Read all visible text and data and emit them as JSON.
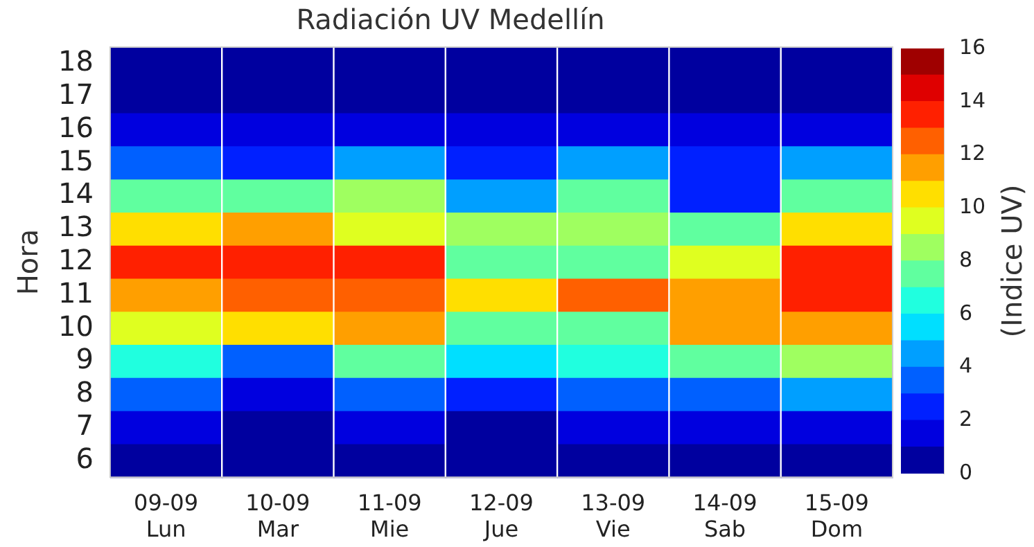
{
  "chart_data": {
    "type": "heatmap",
    "title": "Radiación UV Medellín",
    "ylabel": "Hora",
    "clabel": "(Indice UV)",
    "categories": [
      "09-09\nLun",
      "10-09\nMar",
      "11-09\nMie",
      "12-09\nJue",
      "13-09\nVie",
      "14-09\nSab",
      "15-09\nDom"
    ],
    "y_categories": [
      "18",
      "17",
      "16",
      "15",
      "14",
      "13",
      "12",
      "11",
      "10",
      "9",
      "8",
      "7",
      "6"
    ],
    "cells": [
      [
        0.5,
        0.5,
        0.5,
        0.5,
        0.5,
        0.5,
        0.5
      ],
      [
        0.5,
        0.5,
        0.5,
        0.5,
        0.5,
        0.5,
        0.5
      ],
      [
        1.5,
        1.5,
        1.5,
        1.5,
        1.5,
        1.5,
        1.5
      ],
      [
        3.5,
        2.5,
        4.5,
        2.5,
        4.5,
        2.5,
        4.5
      ],
      [
        7.5,
        7.5,
        8.5,
        4.5,
        7.5,
        2.5,
        7.5
      ],
      [
        10.5,
        11.5,
        9.5,
        8.5,
        8.5,
        7.5,
        10.5
      ],
      [
        13.5,
        13.5,
        13.5,
        7.5,
        7.5,
        9.5,
        13.5
      ],
      [
        11.5,
        12.5,
        12.5,
        10.5,
        12.5,
        11.5,
        13.5
      ],
      [
        9.5,
        10.5,
        11.5,
        7.5,
        7.5,
        11.5,
        11.5
      ],
      [
        6.5,
        3.5,
        7.5,
        5.5,
        6.5,
        7.5,
        8.5
      ],
      [
        3.5,
        1.5,
        3.5,
        2.5,
        3.5,
        3.5,
        4.5
      ],
      [
        1.5,
        0.5,
        1.5,
        0.5,
        1.5,
        1.5,
        1.5
      ],
      [
        0.5,
        0.5,
        0.5,
        0.5,
        0.5,
        0.5,
        0.5
      ]
    ],
    "clim": [
      0,
      16
    ],
    "cticks": [
      0,
      2,
      4,
      6,
      8,
      10,
      12,
      14,
      16
    ],
    "grid": "x"
  }
}
